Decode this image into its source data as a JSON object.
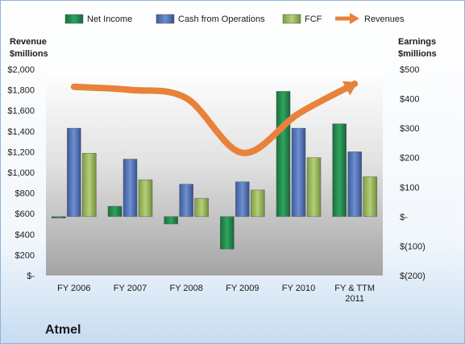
{
  "chart_data": {
    "type": "bar",
    "title": "Atmel",
    "left_axis_label_line1": "Revenue",
    "left_axis_label_line2": "$millions",
    "right_axis_label_line1": "Earnings",
    "right_axis_label_line2": "$millions",
    "categories": [
      "FY 2006",
      "FY 2007",
      "FY 2008",
      "FY 2009",
      "FY 2010",
      "FY & TTM 2011"
    ],
    "category_lines": [
      [
        "FY 2006"
      ],
      [
        "FY 2007"
      ],
      [
        "FY 2008"
      ],
      [
        "FY 2009"
      ],
      [
        "FY 2010"
      ],
      [
        "FY & TTM",
        "2011"
      ]
    ],
    "left_axis": {
      "min": 0,
      "max": 2000,
      "step": 200,
      "tick_labels": [
        "$-",
        "$200",
        "$400",
        "$600",
        "$800",
        "$1,000",
        "$1,200",
        "$1,400",
        "$1,600",
        "$1,800",
        "$2,000"
      ]
    },
    "right_axis": {
      "min": -200,
      "max": 500,
      "step": 100,
      "tick_labels": [
        "$(200)",
        "$(100)",
        "$-",
        "$100",
        "$200",
        "$300",
        "$400",
        "$500"
      ]
    },
    "series": [
      {
        "name": "Net Income",
        "axis": "right",
        "kind": "bar",
        "color": "#1f8a4c",
        "values": [
          -5,
          35,
          -25,
          -110,
          425,
          315
        ]
      },
      {
        "name": "Cash from Operations",
        "axis": "right",
        "kind": "bar",
        "color": "#4a6fb5",
        "values": [
          300,
          195,
          110,
          118,
          300,
          220
        ]
      },
      {
        "name": "FCF",
        "axis": "right",
        "kind": "bar",
        "color": "#9bbb59",
        "values": [
          215,
          125,
          62,
          90,
          200,
          135
        ]
      },
      {
        "name": "Revenues",
        "axis": "left",
        "kind": "arrow-line",
        "color": "#e8823a",
        "values": [
          1830,
          1800,
          1720,
          1190,
          1570,
          1860
        ]
      }
    ],
    "legend_position": "top",
    "grid": false,
    "colors": {
      "gradient_top": "#ffffff",
      "gradient_bottom": "#a9a9a9",
      "frame_bottom": "#c9ddf0",
      "frame_border": "#8fb3d9"
    }
  }
}
